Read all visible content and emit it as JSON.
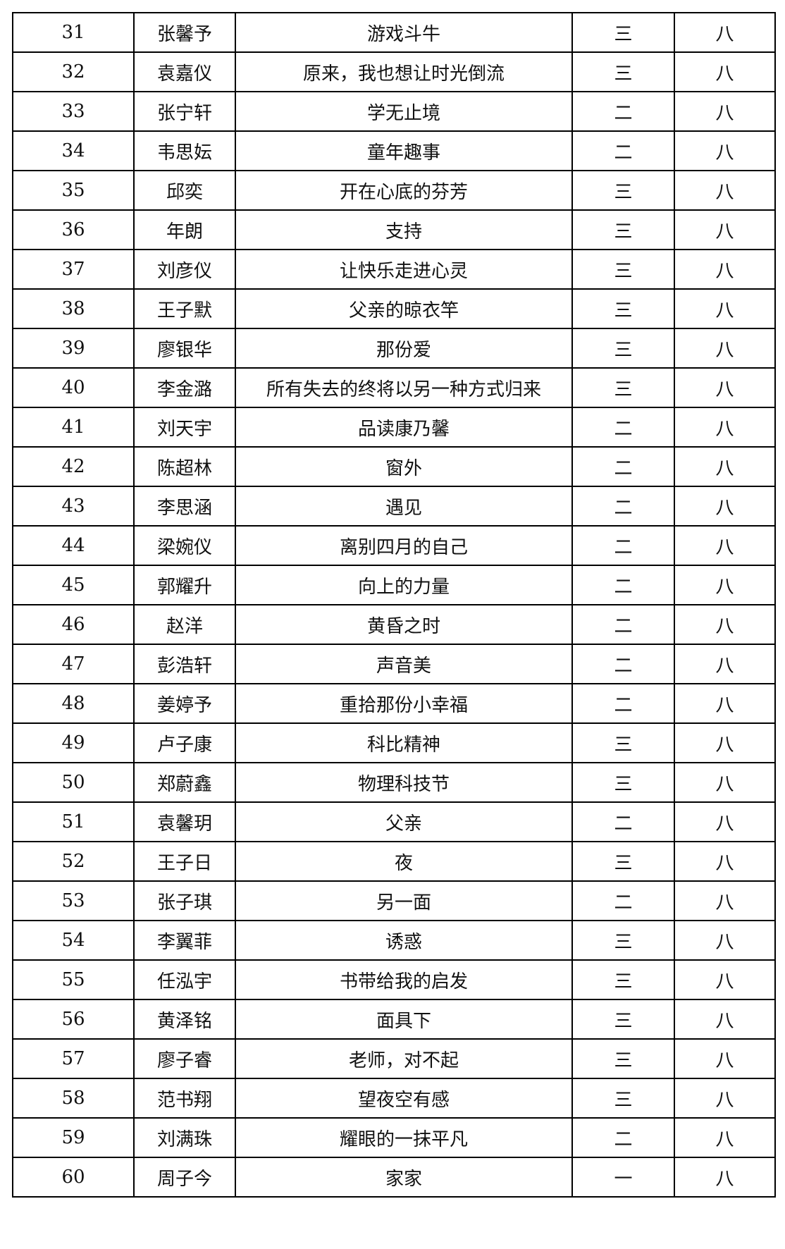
{
  "rows": [
    [
      "31",
      "张馨予",
      "游戏斗牛",
      "三",
      "八"
    ],
    [
      "32",
      "袁嘉仪",
      "原来，我也想让时光倒流",
      "三",
      "八"
    ],
    [
      "33",
      "张宁轩",
      "学无止境",
      "二",
      "八"
    ],
    [
      "34",
      "韦思妘",
      "童年趣事",
      "二",
      "八"
    ],
    [
      "35",
      "邱奕",
      "开在心底的芬芳",
      "三",
      "八"
    ],
    [
      "36",
      "年朗",
      "支持",
      "三",
      "八"
    ],
    [
      "37",
      "刘彦仪",
      "让快乐走进心灵",
      "三",
      "八"
    ],
    [
      "38",
      "王子默",
      "父亲的晾衣竿",
      "三",
      "八"
    ],
    [
      "39",
      "廖银华",
      "那份爱",
      "三",
      "八"
    ],
    [
      "40",
      "李金潞",
      "所有失去的终将以另一种方式归来",
      "三",
      "八"
    ],
    [
      "41",
      "刘天宇",
      "品读康乃馨",
      "二",
      "八"
    ],
    [
      "42",
      "陈超林",
      "窗外",
      "二",
      "八"
    ],
    [
      "43",
      "李思涵",
      "遇见",
      "二",
      "八"
    ],
    [
      "44",
      "梁婉仪",
      "离别四月的自己",
      "二",
      "八"
    ],
    [
      "45",
      "郭耀升",
      "向上的力量",
      "二",
      "八"
    ],
    [
      "46",
      "赵洋",
      "黄昏之时",
      "二",
      "八"
    ],
    [
      "47",
      "彭浩轩",
      "声音美",
      "二",
      "八"
    ],
    [
      "48",
      "姜婷予",
      "重拾那份小幸福",
      "二",
      "八"
    ],
    [
      "49",
      "卢子康",
      "科比精神",
      "三",
      "八"
    ],
    [
      "50",
      "郑蔚鑫",
      "物理科技节",
      "三",
      "八"
    ],
    [
      "51",
      "袁馨玥",
      "父亲",
      "二",
      "八"
    ],
    [
      "52",
      "王子日",
      "夜",
      "三",
      "八"
    ],
    [
      "53",
      "张子琪",
      "另一面",
      "二",
      "八"
    ],
    [
      "54",
      "李翼菲",
      "诱惑",
      "三",
      "八"
    ],
    [
      "55",
      "任泓宇",
      "书带给我的启发",
      "三",
      "八"
    ],
    [
      "56",
      "黄泽铭",
      "面具下",
      "三",
      "八"
    ],
    [
      "57",
      "廖子睿",
      "老师，对不起",
      "三",
      "八"
    ],
    [
      "58",
      "范书翔",
      "望夜空有感",
      "三",
      "八"
    ],
    [
      "59",
      "刘满珠",
      "耀眼的一抹平凡",
      "二",
      "八"
    ],
    [
      "60",
      "周子今",
      "家家",
      "一",
      "八"
    ]
  ]
}
